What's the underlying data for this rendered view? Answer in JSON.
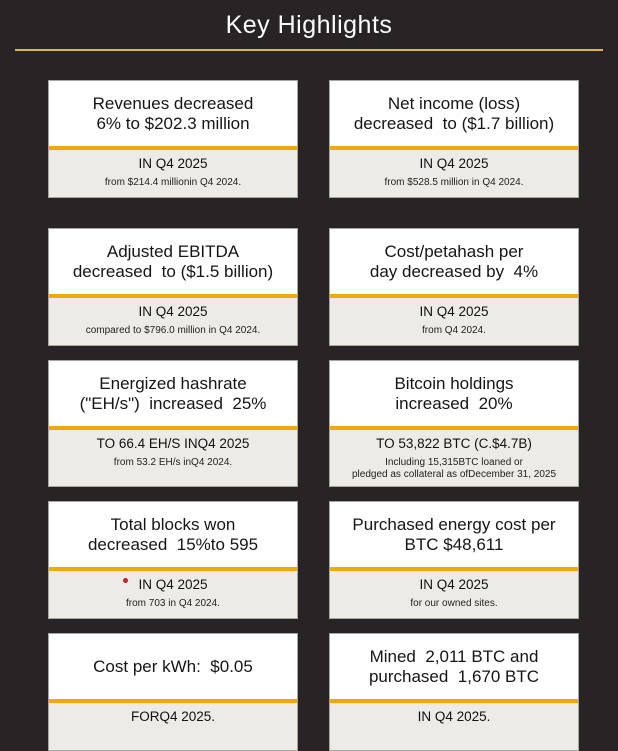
{
  "page": {
    "title": "Key Highlights"
  },
  "colors": {
    "background": "#282425",
    "title_text": "#ffffff",
    "title_underline": "#dfb14b",
    "card_top_bg": "#ffffff",
    "card_bottom_bg": "#edebe6",
    "divider_gold": "#f0a80b",
    "card_border": "#a8a5a0",
    "red_dot": "#cc2020"
  },
  "cards": [
    {
      "headline_lines": [
        "Revenues decreased",
        "6% to $202.3 million"
      ],
      "subheadline": "IN Q4 2025",
      "note_lines": [
        "from $214.4 millionin Q4 2024."
      ],
      "red_dot": false
    },
    {
      "headline_lines": [
        "Net income (loss)",
        "decreased  to ($1.7 billion)"
      ],
      "subheadline": "IN Q4 2025",
      "note_lines": [
        "from $528.5 million in Q4 2024."
      ],
      "red_dot": false
    },
    {
      "headline_lines": [
        "Adjusted EBITDA",
        "decreased  to ($1.5 billion)"
      ],
      "subheadline": "IN Q4 2025",
      "note_lines": [
        "compared to $796.0 million in Q4 2024."
      ],
      "red_dot": false
    },
    {
      "headline_lines": [
        "Cost/petahash per",
        "day decreased by  4%"
      ],
      "subheadline": "IN Q4 2025",
      "note_lines": [
        "from Q4 2024."
      ],
      "red_dot": false
    },
    {
      "headline_lines": [
        "Energized hashrate",
        "(\"EH/s\")  increased  25%"
      ],
      "subheadline": "TO 66.4 EH/S INQ4 2025",
      "note_lines": [
        "from 53.2 EH/s inQ4 2024."
      ],
      "red_dot": false
    },
    {
      "headline_lines": [
        "Bitcoin holdings",
        "increased  20%"
      ],
      "subheadline": "TO 53,822 BTC (C.$4.7B)",
      "note_lines": [
        "Including 15,315BTC loaned or",
        "pledged as collateral as ofDecember 31, 2025"
      ],
      "red_dot": false
    },
    {
      "headline_lines": [
        "Total blocks won",
        "decreased  15%to 595"
      ],
      "subheadline": "IN Q4 2025",
      "note_lines": [
        "from 703 in Q4 2024."
      ],
      "red_dot": true
    },
    {
      "headline_lines": [
        "Purchased energy cost per",
        "BTC $48,611"
      ],
      "subheadline": "IN Q4 2025",
      "note_lines": [
        "for our owned sites."
      ],
      "red_dot": false
    },
    {
      "headline_lines": [
        "Cost per kWh:  $0.05"
      ],
      "subheadline": "FORQ4 2025.",
      "note_lines": [],
      "red_dot": false
    },
    {
      "headline_lines": [
        "Mined  2,011 BTC and",
        "purchased  1,670 BTC"
      ],
      "subheadline": "IN Q4 2025.",
      "note_lines": [],
      "red_dot": false
    }
  ]
}
